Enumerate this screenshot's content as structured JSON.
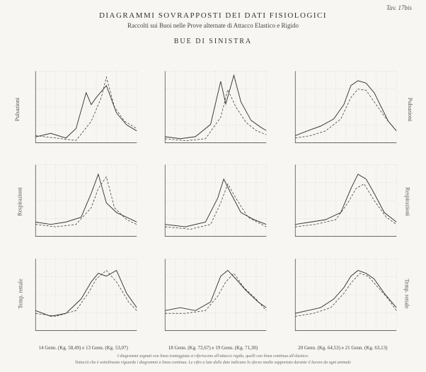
{
  "page_label": "Tav. 17bis",
  "header": {
    "main": "DIAGRAMMI SOVRAPPOSTI DEI DATI FISIOLOGICI",
    "sub": "Raccolti sui Buoi nelle Prove alternate di Attacco Elastico e Rigido",
    "section": "BUE DI SINISTRA"
  },
  "row_labels": [
    "Pulsazioni",
    "Respirazioni",
    "Temp. rettale"
  ],
  "col_labels": [
    "14 Genn. (Kg. 58,49) e 13 Genn. (Kg. 53,07)",
    "18 Genn. (Kg. 72,67) e 19 Genn. (Kg. 71,30)",
    "20 Genn. (Kg. 64,53) e 21 Genn. (Kg. 63,13)"
  ],
  "footnote": {
    "line1": "I diagrammi segnati con linea tratteggiata si riferiscono all'attacco rigido, quelli con linea continua all'elastico.",
    "line2": "Tuttociò che è sottolineato riguarda i diagrammi a linea continua. Le cifre a lato delle date indicano lo sforzo medio supportato durante il lavoro da ogni animale"
  },
  "chart_style": {
    "background": "#f8f6f2",
    "axis_color": "#555555",
    "grid_color": "#bbbbbb",
    "series_color": "#333333",
    "solid_width": 0.9,
    "dashed_width": 0.7,
    "dashed_pattern": "3 2"
  },
  "panels": [
    {
      "row": 0,
      "col": 0,
      "ylim": [
        40,
        100
      ],
      "solid": [
        [
          0,
          45
        ],
        [
          15,
          48
        ],
        [
          30,
          44
        ],
        [
          40,
          52
        ],
        [
          50,
          82
        ],
        [
          55,
          72
        ],
        [
          60,
          78
        ],
        [
          70,
          88
        ],
        [
          80,
          65
        ],
        [
          90,
          55
        ],
        [
          100,
          50
        ]
      ],
      "dashed": [
        [
          0,
          46
        ],
        [
          20,
          44
        ],
        [
          40,
          42
        ],
        [
          55,
          58
        ],
        [
          65,
          78
        ],
        [
          70,
          95
        ],
        [
          78,
          70
        ],
        [
          88,
          58
        ],
        [
          100,
          52
        ]
      ]
    },
    {
      "row": 0,
      "col": 1,
      "ylim": [
        40,
        110
      ],
      "solid": [
        [
          0,
          46
        ],
        [
          15,
          44
        ],
        [
          30,
          46
        ],
        [
          45,
          58
        ],
        [
          55,
          100
        ],
        [
          60,
          78
        ],
        [
          68,
          106
        ],
        [
          75,
          80
        ],
        [
          85,
          62
        ],
        [
          95,
          55
        ],
        [
          100,
          52
        ]
      ],
      "dashed": [
        [
          0,
          44
        ],
        [
          20,
          42
        ],
        [
          40,
          44
        ],
        [
          55,
          65
        ],
        [
          62,
          92
        ],
        [
          70,
          75
        ],
        [
          80,
          60
        ],
        [
          90,
          52
        ],
        [
          100,
          48
        ]
      ]
    },
    {
      "row": 0,
      "col": 2,
      "ylim": [
        40,
        100
      ],
      "solid": [
        [
          0,
          46
        ],
        [
          12,
          50
        ],
        [
          25,
          54
        ],
        [
          38,
          60
        ],
        [
          48,
          72
        ],
        [
          55,
          88
        ],
        [
          62,
          92
        ],
        [
          70,
          90
        ],
        [
          78,
          82
        ],
        [
          85,
          70
        ],
        [
          92,
          58
        ],
        [
          100,
          50
        ]
      ],
      "dashed": [
        [
          0,
          44
        ],
        [
          15,
          46
        ],
        [
          30,
          50
        ],
        [
          45,
          60
        ],
        [
          55,
          78
        ],
        [
          62,
          85
        ],
        [
          70,
          84
        ],
        [
          80,
          72
        ],
        [
          90,
          60
        ],
        [
          100,
          50
        ]
      ]
    },
    {
      "row": 1,
      "col": 0,
      "ylim": [
        10,
        40
      ],
      "solid": [
        [
          0,
          16
        ],
        [
          15,
          15
        ],
        [
          30,
          16
        ],
        [
          45,
          18
        ],
        [
          55,
          28
        ],
        [
          62,
          36
        ],
        [
          70,
          24
        ],
        [
          80,
          20
        ],
        [
          90,
          18
        ],
        [
          100,
          16
        ]
      ],
      "dashed": [
        [
          0,
          15
        ],
        [
          20,
          14
        ],
        [
          40,
          15
        ],
        [
          55,
          22
        ],
        [
          62,
          30
        ],
        [
          70,
          35
        ],
        [
          78,
          22
        ],
        [
          90,
          17
        ],
        [
          100,
          15
        ]
      ]
    },
    {
      "row": 1,
      "col": 1,
      "ylim": [
        10,
        40
      ],
      "solid": [
        [
          0,
          15
        ],
        [
          20,
          14
        ],
        [
          40,
          16
        ],
        [
          52,
          26
        ],
        [
          58,
          34
        ],
        [
          65,
          28
        ],
        [
          75,
          20
        ],
        [
          88,
          17
        ],
        [
          100,
          15
        ]
      ],
      "dashed": [
        [
          0,
          14
        ],
        [
          25,
          13
        ],
        [
          45,
          15
        ],
        [
          55,
          24
        ],
        [
          62,
          32
        ],
        [
          70,
          26
        ],
        [
          82,
          18
        ],
        [
          100,
          14
        ]
      ]
    },
    {
      "row": 1,
      "col": 2,
      "ylim": [
        10,
        40
      ],
      "solid": [
        [
          0,
          15
        ],
        [
          15,
          16
        ],
        [
          30,
          17
        ],
        [
          45,
          20
        ],
        [
          55,
          30
        ],
        [
          62,
          36
        ],
        [
          70,
          34
        ],
        [
          78,
          28
        ],
        [
          88,
          20
        ],
        [
          100,
          16
        ]
      ],
      "dashed": [
        [
          0,
          14
        ],
        [
          20,
          15
        ],
        [
          40,
          17
        ],
        [
          52,
          24
        ],
        [
          60,
          30
        ],
        [
          68,
          32
        ],
        [
          78,
          25
        ],
        [
          90,
          18
        ],
        [
          100,
          15
        ]
      ]
    },
    {
      "row": 2,
      "col": 0,
      "ylim": [
        37.5,
        40
      ],
      "solid": [
        [
          0,
          38.2
        ],
        [
          15,
          38.0
        ],
        [
          30,
          38.1
        ],
        [
          45,
          38.6
        ],
        [
          55,
          39.2
        ],
        [
          62,
          39.5
        ],
        [
          70,
          39.4
        ],
        [
          80,
          39.6
        ],
        [
          90,
          38.8
        ],
        [
          100,
          38.3
        ]
      ],
      "dashed": [
        [
          0,
          38.1
        ],
        [
          20,
          38.0
        ],
        [
          40,
          38.2
        ],
        [
          52,
          38.8
        ],
        [
          60,
          39.3
        ],
        [
          70,
          39.6
        ],
        [
          80,
          39.2
        ],
        [
          92,
          38.5
        ],
        [
          100,
          38.2
        ]
      ]
    },
    {
      "row": 2,
      "col": 1,
      "ylim": [
        37.5,
        40
      ],
      "solid": [
        [
          0,
          38.2
        ],
        [
          15,
          38.3
        ],
        [
          30,
          38.2
        ],
        [
          45,
          38.5
        ],
        [
          55,
          39.4
        ],
        [
          62,
          39.6
        ],
        [
          70,
          39.3
        ],
        [
          80,
          38.9
        ],
        [
          92,
          38.5
        ],
        [
          100,
          38.3
        ]
      ],
      "dashed": [
        [
          0,
          38.1
        ],
        [
          20,
          38.1
        ],
        [
          40,
          38.2
        ],
        [
          52,
          38.7
        ],
        [
          60,
          39.2
        ],
        [
          68,
          39.5
        ],
        [
          78,
          39.0
        ],
        [
          90,
          38.6
        ],
        [
          100,
          38.2
        ]
      ]
    },
    {
      "row": 2,
      "col": 2,
      "ylim": [
        37.5,
        40
      ],
      "solid": [
        [
          0,
          38.1
        ],
        [
          12,
          38.2
        ],
        [
          25,
          38.3
        ],
        [
          38,
          38.6
        ],
        [
          48,
          39.0
        ],
        [
          55,
          39.4
        ],
        [
          62,
          39.6
        ],
        [
          70,
          39.5
        ],
        [
          78,
          39.3
        ],
        [
          88,
          38.8
        ],
        [
          100,
          38.3
        ]
      ],
      "dashed": [
        [
          0,
          38.0
        ],
        [
          18,
          38.1
        ],
        [
          35,
          38.3
        ],
        [
          48,
          38.8
        ],
        [
          56,
          39.2
        ],
        [
          64,
          39.5
        ],
        [
          72,
          39.4
        ],
        [
          82,
          39.0
        ],
        [
          92,
          38.6
        ],
        [
          100,
          38.2
        ]
      ]
    }
  ]
}
